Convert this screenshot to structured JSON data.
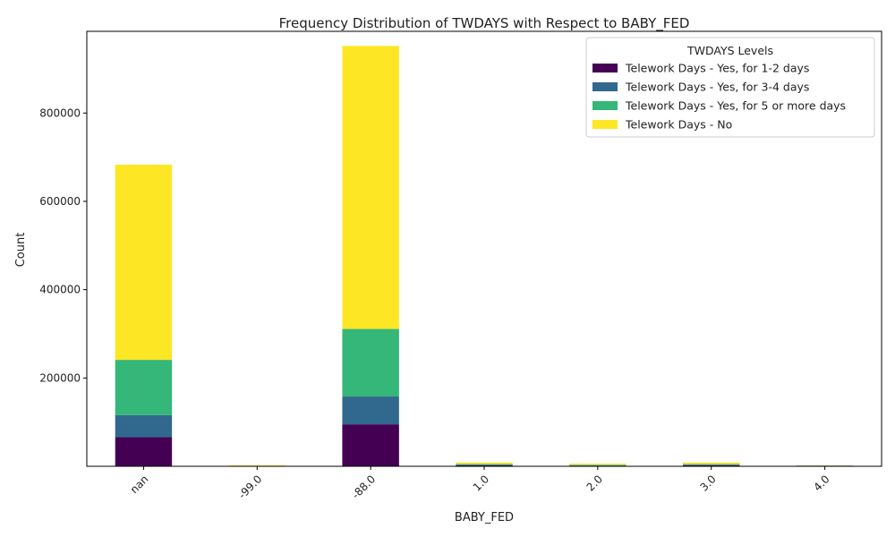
{
  "chart_data": {
    "type": "bar",
    "stacked": true,
    "title": "Frequency Distribution of TWDAYS with Respect to BABY_FED",
    "xlabel": "BABY_FED",
    "ylabel": "Count",
    "categories": [
      "nan",
      "-99.0",
      "-88.0",
      "1.0",
      "2.0",
      "3.0",
      "4.0"
    ],
    "ylim": [
      0,
      985000
    ],
    "yticks": [
      200000,
      400000,
      600000,
      800000
    ],
    "grid": false,
    "legend": {
      "title": "TWDAYS Levels",
      "placement": "top-right"
    },
    "series": [
      {
        "name": "Telework Days - Yes, for 1-2 days",
        "color": "#440154",
        "values": [
          66000,
          300,
          95000,
          2000,
          1500,
          2500,
          1200
        ]
      },
      {
        "name": "Telework Days - Yes, for 3-4 days",
        "color": "#31688e",
        "values": [
          50000,
          200,
          63000,
          1500,
          1000,
          1200,
          300
        ]
      },
      {
        "name": "Telework Days - Yes, for 5 or more days",
        "color": "#35b779",
        "values": [
          125000,
          200,
          153000,
          1500,
          1000,
          1300,
          200
        ]
      },
      {
        "name": "Telework Days - No",
        "color": "#fde725",
        "values": [
          442000,
          1300,
          641000,
          3500,
          2500,
          3500,
          300
        ]
      }
    ]
  }
}
